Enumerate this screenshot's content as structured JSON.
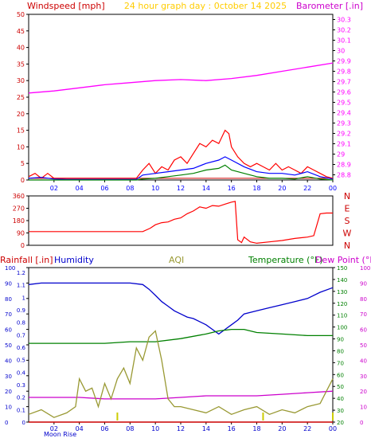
{
  "colors": {
    "bg": "#ffffff",
    "axis": "#000000",
    "grid_minor": "#aaaaaa",
    "wind": "#ff0000",
    "gust_line": "#cc0000",
    "avg_wind": "#0000ff",
    "min_wind": "#008000",
    "baro": "#ff00ff",
    "dir": "#ff0000",
    "humid": "#0000cc",
    "temp": "#008000",
    "dew": "#cc00cc",
    "aqi": "#999933",
    "rain": "#cc0000",
    "left_text": "#cc0000",
    "moon": "#cccc00",
    "moon_text": "#0000cc",
    "title": "#ffcc00"
  },
  "chart_data": [
    {
      "type": "line",
      "name": "wind-baro",
      "title": "24 hour graph day : 0ctober 14 2025",
      "left_label": "Windspeed [mph]",
      "right_label": "Barometer [.in]",
      "x_ticks": [
        "02",
        "04",
        "06",
        "08",
        "10",
        "12",
        "14",
        "16",
        "18",
        "20",
        "22",
        "00"
      ],
      "y_ticks_left": [
        0,
        5,
        10,
        15,
        20,
        25,
        30,
        35,
        40,
        45,
        50
      ],
      "y_ticks_right": [
        "28.8",
        "28.9",
        "29",
        "29.1",
        "29.2",
        "29.3",
        "29.4",
        "29.5",
        "29.6",
        "29.7",
        "29.8",
        "29.9",
        "30",
        "30.1",
        "30.2",
        "30.3"
      ],
      "ylim_left": [
        0,
        50
      ],
      "ylim_right": [
        28.75,
        30.35
      ],
      "xlim": [
        0,
        24
      ],
      "baro": {
        "x": [
          0,
          2,
          4,
          6,
          8,
          10,
          12,
          14,
          16,
          18,
          20,
          22,
          24
        ],
        "y": [
          29.59,
          29.61,
          29.64,
          29.67,
          29.69,
          29.71,
          29.72,
          29.71,
          29.73,
          29.76,
          29.8,
          29.84,
          29.88
        ]
      },
      "gust": {
        "x": [
          0,
          0.5,
          1,
          1.5,
          2,
          3,
          5,
          7,
          8.5,
          9,
          9.5,
          10,
          10.5,
          11,
          11.5,
          12,
          12.5,
          13,
          13.5,
          14,
          14.5,
          15,
          15.5,
          15.8,
          16,
          16.5,
          17,
          17.5,
          18,
          18.5,
          19,
          19.5,
          20,
          20.5,
          21,
          21.5,
          22,
          22.5,
          23,
          23.5,
          24
        ],
        "y": [
          1,
          2,
          0.5,
          2,
          0.5,
          0.5,
          0.5,
          0.5,
          0.5,
          3,
          5,
          2,
          4,
          3,
          6,
          7,
          5,
          8,
          11,
          10,
          12,
          11,
          15,
          14,
          10,
          7,
          5,
          4,
          5,
          4,
          3,
          5,
          3,
          4,
          3,
          2,
          4,
          3,
          2,
          1,
          0.5
        ]
      },
      "avg": {
        "x": [
          0,
          1,
          2,
          3,
          8.5,
          9,
          10,
          11,
          12,
          13,
          14,
          15,
          15.5,
          16,
          17,
          18,
          19,
          20,
          21,
          22,
          23,
          24
        ],
        "y": [
          0.5,
          0.8,
          0.3,
          0.2,
          0.2,
          1.5,
          2,
          2.5,
          3,
          3.5,
          5,
          6,
          7,
          6,
          4,
          2.5,
          2,
          2,
          1.5,
          2.5,
          1,
          0.3
        ]
      },
      "min": {
        "x": [
          0,
          8.5,
          9,
          10,
          11,
          12,
          13,
          14,
          15,
          15.5,
          16,
          17,
          18,
          19,
          20,
          21,
          22,
          23,
          24
        ],
        "y": [
          0,
          0,
          0.3,
          0.5,
          1,
          1.5,
          2,
          3,
          3.5,
          4.5,
          3,
          2,
          1,
          0.5,
          0.5,
          0.3,
          1,
          0.3,
          0
        ]
      }
    },
    {
      "type": "line",
      "name": "wind-direction",
      "y_ticks": [
        0,
        90,
        180,
        270,
        360
      ],
      "right_letters": [
        "N",
        "W",
        "S",
        "E",
        "N"
      ],
      "ylim": [
        0,
        360
      ],
      "xlim": [
        0,
        24
      ],
      "direction": {
        "x": [
          0,
          1,
          2,
          3,
          4,
          5,
          6,
          7,
          8,
          9,
          9.6,
          10,
          10.5,
          11,
          11.5,
          12,
          12.5,
          13,
          13.5,
          14,
          14.5,
          15,
          15.5,
          16,
          16.3,
          16.5,
          16.8,
          17,
          17.5,
          18,
          19,
          20,
          21,
          22,
          22.5,
          23,
          23.5,
          24
        ],
        "y": [
          100,
          100,
          100,
          100,
          100,
          100,
          100,
          100,
          100,
          100,
          125,
          150,
          165,
          170,
          190,
          200,
          230,
          250,
          280,
          270,
          290,
          285,
          300,
          315,
          320,
          40,
          20,
          60,
          25,
          15,
          25,
          35,
          50,
          60,
          70,
          230,
          235,
          235
        ]
      }
    },
    {
      "type": "line",
      "name": "humidity-temp-aqi",
      "labels": {
        "rain": "Rainfall [.in]",
        "humidity": "Humidity",
        "aqi": "AQI",
        "temp": "Temperature (°F)",
        "dew": "Dew Point (°F)"
      },
      "moon_rise_label": "Moon Rise",
      "y_ticks_humidity": [
        0,
        10,
        20,
        30,
        40,
        50,
        60,
        70,
        80,
        90,
        100
      ],
      "y_ticks_rain": [
        "0",
        "0.1",
        "0.2",
        "0.3",
        "0.4",
        "0.5",
        "0.6",
        "0.7",
        "0.8",
        "0.9",
        "1",
        "1.1",
        "1.2"
      ],
      "y_ticks_temp": [
        20,
        30,
        40,
        50,
        60,
        70,
        80,
        90,
        100,
        110,
        120,
        130,
        140,
        150
      ],
      "y_ticks_dew": [
        0,
        10,
        20,
        30,
        40,
        50,
        60,
        70,
        80,
        90,
        100
      ],
      "ylim_humidity": [
        0,
        100
      ],
      "ylim_temp": [
        20,
        150
      ],
      "xlim": [
        0,
        24
      ],
      "humidity": {
        "x": [
          0,
          1,
          2,
          3,
          4,
          5,
          6,
          7,
          8,
          9,
          9.5,
          10,
          10.5,
          11,
          11.5,
          12,
          12.5,
          13,
          13.5,
          14,
          14.5,
          15,
          15.5,
          16,
          16.5,
          17,
          18,
          19,
          20,
          21,
          22,
          23,
          24
        ],
        "y": [
          89,
          90,
          90,
          90,
          90,
          90,
          90,
          90,
          90,
          89,
          86,
          82,
          78,
          75,
          72,
          70,
          68,
          67,
          65,
          63,
          60,
          57,
          60,
          63,
          66,
          70,
          72,
          74,
          76,
          78,
          80,
          84,
          87
        ]
      },
      "temperature": {
        "x": [
          0,
          2,
          4,
          6,
          8,
          10,
          12,
          14,
          15,
          16,
          17,
          18,
          20,
          22,
          24
        ],
        "y": [
          51,
          51,
          51,
          51,
          52,
          52,
          54,
          57,
          59,
          60,
          60,
          58,
          57,
          56,
          56
        ]
      },
      "dewpoint": {
        "x": [
          0,
          2,
          4,
          6,
          8,
          10,
          12,
          14,
          15,
          16,
          17,
          18,
          20,
          22,
          24
        ],
        "y": [
          16,
          16,
          16,
          15,
          15,
          15,
          16,
          17,
          17,
          17,
          17,
          17,
          18,
          19,
          20
        ]
      },
      "aqi": {
        "x": [
          0,
          1,
          2,
          3,
          3.7,
          4,
          4.5,
          5,
          5.5,
          6,
          6.5,
          7,
          7.5,
          8,
          8.5,
          9,
          9.5,
          10,
          10.5,
          11,
          11.5,
          12,
          13,
          14,
          15,
          16,
          17,
          18,
          19,
          20,
          21,
          22,
          23,
          23.5,
          24
        ],
        "y": [
          5,
          8,
          3,
          6,
          10,
          28,
          20,
          22,
          10,
          25,
          15,
          28,
          35,
          25,
          48,
          40,
          55,
          59,
          40,
          15,
          10,
          10,
          8,
          6,
          10,
          5,
          8,
          10,
          5,
          8,
          6,
          10,
          12,
          20,
          28
        ]
      },
      "rain": {
        "x": [
          0,
          24
        ],
        "y": [
          0,
          0
        ]
      }
    }
  ]
}
